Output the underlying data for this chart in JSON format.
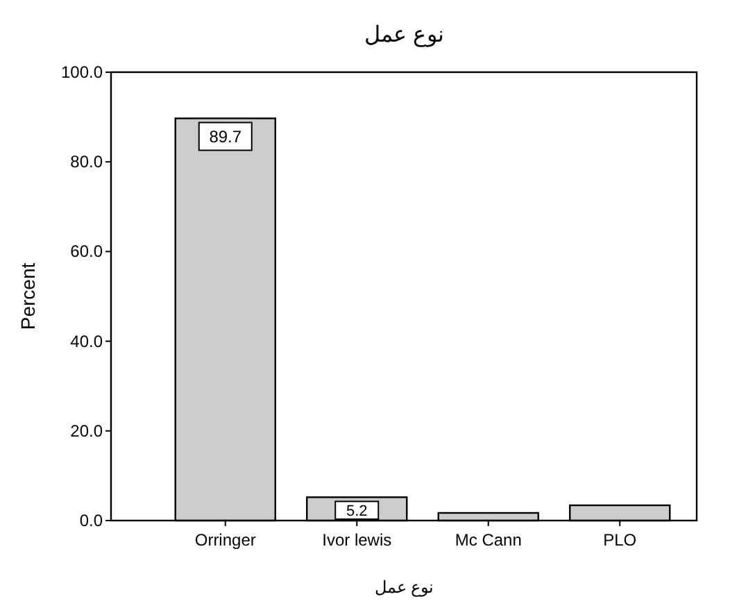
{
  "chart_data": {
    "type": "bar",
    "title": "نوع عمل",
    "xlabel": "نوع عمل",
    "ylabel": "Percent",
    "categories": [
      "Orringer",
      "Ivor lewis",
      "Mc Cann",
      "PLO"
    ],
    "values": [
      89.7,
      5.2,
      1.7,
      3.4
    ],
    "value_labels": [
      "89.7",
      "5.2",
      null,
      null
    ],
    "color": "#cccccc",
    "ylim": [
      0,
      100
    ],
    "yticks": [
      {
        "value": 0,
        "label": "0.0"
      },
      {
        "value": 20,
        "label": "20.0"
      },
      {
        "value": 40,
        "label": "40.0"
      },
      {
        "value": 60,
        "label": "60.0"
      },
      {
        "value": 80,
        "label": "80.0"
      },
      {
        "value": 100,
        "label": "100.0"
      }
    ],
    "grid": false
  }
}
